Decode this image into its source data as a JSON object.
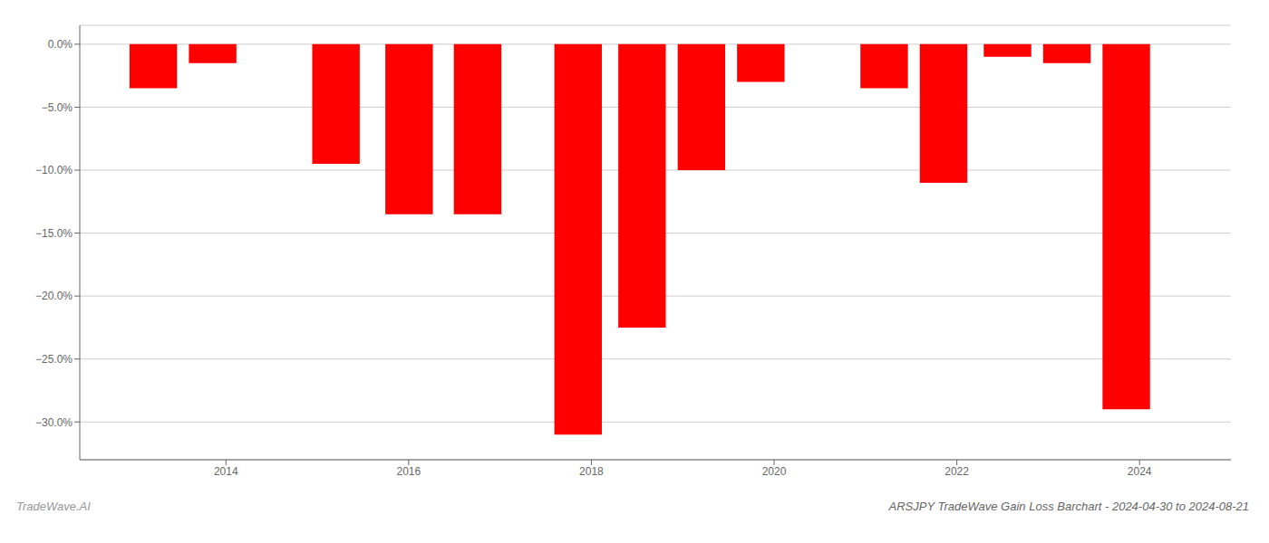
{
  "chart_data": {
    "type": "bar",
    "title": "ARSJPY TradeWave Gain Loss Barchart - 2024-04-30 to 2024-08-21",
    "annotations": [
      "TradeWave.AI"
    ],
    "x": [
      2013.2,
      2013.85,
      2015.2,
      2016.0,
      2016.75,
      2017.85,
      2018.55,
      2019.2,
      2019.85,
      2021.2,
      2021.85,
      2022.55,
      2023.2,
      2023.85
    ],
    "values": [
      -3.5,
      -1.5,
      -9.5,
      -13.5,
      -13.5,
      -31.0,
      -22.5,
      -10.0,
      -3.0,
      -3.5,
      -11.0,
      -1.0,
      -1.5,
      -29.0
    ],
    "color": "#ff0000",
    "xlim": [
      2012.4,
      2025.0
    ],
    "xticks": [
      2014,
      2016,
      2018,
      2020,
      2022,
      2024
    ],
    "ylim": [
      -33,
      1.5
    ],
    "yticks": [
      {
        "value": 0.0,
        "label": "0.0%"
      },
      {
        "value": -5.0,
        "label": "−5.0%"
      },
      {
        "value": -10.0,
        "label": "−10.0%"
      },
      {
        "value": -15.0,
        "label": "−15.0%"
      },
      {
        "value": -20.0,
        "label": "−20.0%"
      },
      {
        "value": -25.0,
        "label": "−25.0%"
      },
      {
        "value": -30.0,
        "label": "−30.0%"
      }
    ],
    "grid": true
  }
}
